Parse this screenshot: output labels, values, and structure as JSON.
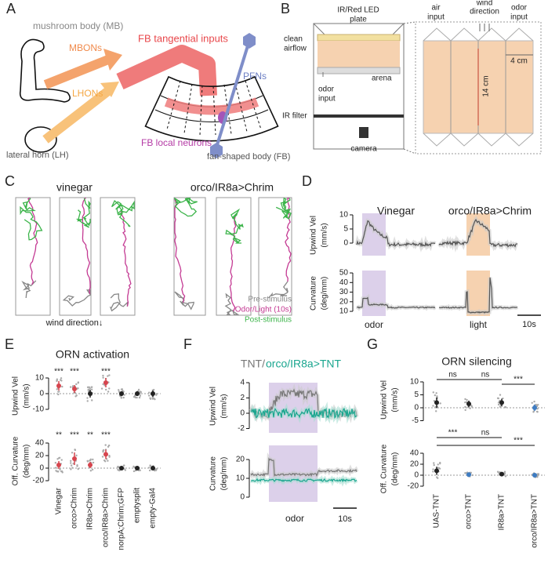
{
  "A": {
    "letter": "A",
    "mushroom_body": "mushroom body (MB)",
    "mbons": "MBONs",
    "fb_tangential": "FB tangential inputs",
    "pfns": "PFNs",
    "lhons": "LHONs",
    "fb_local": "FB local neurons",
    "lateral_horn": "lateral horn (LH)",
    "fan_shaped_body": "fan-shaped body (FB)"
  },
  "B": {
    "letter": "B",
    "led_plate": [
      "IR/Red LED",
      "plate"
    ],
    "clean_airflow": [
      "clean",
      "airflow"
    ],
    "arena": "arena",
    "odor_input_left": [
      "odor",
      "input"
    ],
    "ir_filter": "IR filter",
    "camera": "camera",
    "air_input": [
      "air",
      "input"
    ],
    "wind_direction": [
      "wind",
      "direction"
    ],
    "odor_input_right": [
      "odor",
      "input"
    ],
    "width": "4 cm",
    "length": "14 cm"
  },
  "C": {
    "letter": "C",
    "vinegar": "vinegar",
    "chrim": "orco/IR8a>Chrim",
    "wind_direction": "wind direction↓",
    "legend": [
      "Pre-stimulus",
      "Odor/Light (10s)",
      "Post-stimulus"
    ]
  },
  "D": {
    "letter": "D",
    "vinegar": "Vinegar",
    "chrim": "orco/IR8a>Chrim",
    "vel_label": [
      "Upwind Vel",
      "(mm/s)"
    ],
    "vel_ticks": [
      10,
      5,
      0
    ],
    "curv_label": [
      "Curvature",
      "(deg/mm)"
    ],
    "curv_ticks": [
      50,
      40,
      30,
      20,
      10
    ],
    "odor": "odor",
    "light": "light",
    "scale": "10s"
  },
  "E": {
    "letter": "E",
    "title": "ORN activation",
    "vel_label": [
      "Upwind Vel",
      "(mm/s)"
    ],
    "vel_ticks": [
      10,
      0,
      -10
    ],
    "vel_stars": [
      "***",
      "***",
      null,
      "***",
      null,
      null,
      null
    ],
    "curv_label": [
      "Off. Curvature",
      "(deg/mm)"
    ],
    "curv_ticks": [
      40,
      20,
      0,
      -20
    ],
    "curv_stars": [
      "**",
      "***",
      "**",
      "***",
      null,
      null,
      null
    ],
    "categories": [
      "Vinegar",
      "orco>Chrim",
      "IR8a>Chrim",
      "orco/IR8a>Chrim",
      "norpA;Chrim;GFP",
      "emptysplit",
      "empty-Gal4"
    ]
  },
  "F": {
    "letter": "F",
    "title": [
      "TNT/",
      "orco/IR8a>TNT"
    ],
    "vel_label": [
      "Upwind Vel",
      "(mm/s)"
    ],
    "vel_ticks": [
      4,
      2,
      0,
      -2
    ],
    "curv_label": [
      "Curvature",
      "(deg/mm)"
    ],
    "curv_ticks": [
      20,
      10,
      0
    ],
    "odor": "odor",
    "scale": "10s"
  },
  "G": {
    "letter": "G",
    "title": "ORN silencing",
    "vel_label": [
      "Upwind Vel",
      "(mm/s)"
    ],
    "vel_ticks": [
      10,
      5,
      0,
      -5
    ],
    "vel_comparisons": [
      "ns",
      "ns",
      "***"
    ],
    "curv_label": [
      "Off. Curvature",
      "(deg/mm)"
    ],
    "curv_ticks": [
      40,
      20,
      0,
      -20
    ],
    "curv_comparisons": [
      "***",
      "ns",
      "***"
    ],
    "categories": [
      "UAS-TNT",
      "orco>TNT",
      "IR8a>TNT",
      "orco/IR8a>TNT"
    ]
  }
}
